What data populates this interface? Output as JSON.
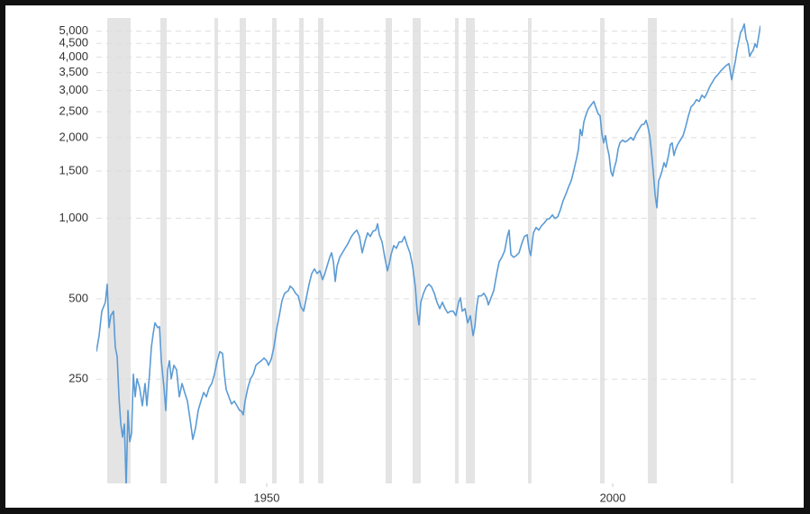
{
  "chart_data": {
    "type": "line",
    "log_y": true,
    "grid": true,
    "color": "#5b9bd5",
    "recession_color": "#e4e4e4",
    "xlim": [
      1925.39,
      2021.35
    ],
    "ylim": [
      102,
      5600
    ],
    "xticks": [
      1950,
      2000
    ],
    "yticks": [
      250,
      500,
      {
        "value": 1000,
        "label": "1,000"
      },
      {
        "value": 1500,
        "label": "1,500"
      },
      {
        "value": 2000,
        "label": "2,000"
      },
      {
        "value": 2500,
        "label": "2,500"
      },
      {
        "value": 3000,
        "label": "3,000"
      },
      {
        "value": 3500,
        "label": "3,500"
      },
      {
        "value": 4000,
        "label": "4,000"
      },
      {
        "value": 4500,
        "label": "4,500"
      },
      {
        "value": 5000,
        "label": "5,000"
      }
    ],
    "recessions": [
      [
        1926.95,
        1930.34
      ],
      [
        1934.64,
        1935.55
      ],
      [
        1942.45,
        1942.97
      ],
      [
        1946.09,
        1947.0
      ],
      [
        1950.78,
        1951.43
      ],
      [
        1954.69,
        1955.34
      ],
      [
        1957.42,
        1958.2
      ],
      [
        1967.19,
        1968.1
      ],
      [
        1971.09,
        1972.27
      ],
      [
        1977.21,
        1977.73
      ],
      [
        1978.78,
        1980.08
      ],
      [
        1987.76,
        1988.28
      ],
      [
        1998.18,
        1998.83
      ],
      [
        2005.08,
        2006.38
      ],
      [
        2017.06,
        2017.45
      ]
    ],
    "x": [
      1925.39,
      1925.78,
      1926.17,
      1926.69,
      1926.95,
      1927.21,
      1927.47,
      1927.86,
      1928.12,
      1928.39,
      1928.65,
      1928.91,
      1929.17,
      1929.43,
      1929.69,
      1929.95,
      1930.21,
      1930.47,
      1930.73,
      1930.99,
      1931.25,
      1931.64,
      1932.03,
      1932.42,
      1932.68,
      1933.07,
      1933.33,
      1933.59,
      1933.85,
      1934.24,
      1934.51,
      1934.77,
      1935.16,
      1935.42,
      1935.68,
      1935.94,
      1936.2,
      1936.59,
      1936.98,
      1937.37,
      1937.76,
      1938.15,
      1938.54,
      1938.93,
      1939.32,
      1939.71,
      1940.1,
      1940.49,
      1940.89,
      1941.28,
      1941.67,
      1942.06,
      1942.45,
      1942.84,
      1943.23,
      1943.62,
      1943.88,
      1944.14,
      1944.53,
      1944.92,
      1945.31,
      1945.7,
      1946.09,
      1946.35,
      1946.61,
      1946.87,
      1947.27,
      1947.66,
      1948.05,
      1948.44,
      1948.83,
      1949.22,
      1949.61,
      1950.0,
      1950.26,
      1950.65,
      1951.04,
      1951.43,
      1951.82,
      1952.21,
      1952.6,
      1953.13,
      1953.39,
      1953.78,
      1954.17,
      1954.56,
      1954.95,
      1955.34,
      1955.73,
      1956.12,
      1956.51,
      1956.9,
      1957.29,
      1957.68,
      1958.07,
      1958.33,
      1958.72,
      1959.11,
      1959.38,
      1959.64,
      1959.9,
      1960.16,
      1960.55,
      1960.94,
      1961.33,
      1961.72,
      1962.24,
      1962.63,
      1963.02,
      1963.41,
      1963.8,
      1964.19,
      1964.58,
      1964.97,
      1965.36,
      1965.76,
      1966.02,
      1966.28,
      1966.67,
      1967.06,
      1967.45,
      1967.71,
      1967.97,
      1968.36,
      1968.75,
      1969.14,
      1969.53,
      1969.92,
      1970.31,
      1970.7,
      1971.09,
      1971.48,
      1971.74,
      1972.01,
      1972.27,
      1972.66,
      1973.05,
      1973.44,
      1973.83,
      1974.22,
      1974.61,
      1975.0,
      1975.39,
      1975.78,
      1976.17,
      1976.56,
      1976.95,
      1977.34,
      1977.73,
      1977.99,
      1978.26,
      1978.65,
      1979.04,
      1979.43,
      1979.82,
      1980.08,
      1980.34,
      1980.6,
      1980.99,
      1981.38,
      1981.77,
      1982.03,
      1982.42,
      1982.81,
      1983.2,
      1983.59,
      1983.98,
      1984.38,
      1984.77,
      1985.03,
      1985.29,
      1985.68,
      1986.07,
      1986.46,
      1986.85,
      1987.24,
      1987.63,
      1987.89,
      1988.15,
      1988.54,
      1988.93,
      1989.32,
      1989.71,
      1990.1,
      1990.49,
      1990.89,
      1991.28,
      1991.67,
      1992.06,
      1992.45,
      1992.84,
      1993.23,
      1993.62,
      1994.01,
      1994.4,
      1994.79,
      1995.05,
      1995.31,
      1995.57,
      1995.83,
      1996.09,
      1996.48,
      1996.88,
      1997.27,
      1997.53,
      1997.92,
      1998.18,
      1998.44,
      1998.7,
      1998.96,
      1999.22,
      1999.48,
      1999.74,
      2000.0,
      2000.26,
      2000.52,
      2000.78,
      2001.04,
      2001.43,
      2001.82,
      2002.21,
      2002.6,
      2002.99,
      2003.39,
      2003.78,
      2004.17,
      2004.56,
      2004.82,
      2005.08,
      2005.34,
      2005.6,
      2005.86,
      2006.12,
      2006.38,
      2006.64,
      2006.9,
      2007.16,
      2007.42,
      2007.68,
      2008.07,
      2008.33,
      2008.59,
      2008.85,
      2009.11,
      2009.38,
      2009.77,
      2010.16,
      2010.55,
      2010.94,
      2011.33,
      2011.72,
      2012.11,
      2012.5,
      2012.89,
      2013.28,
      2013.67,
      2014.06,
      2014.45,
      2014.84,
      2015.23,
      2015.63,
      2016.02,
      2016.41,
      2016.8,
      2017.19,
      2017.45,
      2017.71,
      2017.97,
      2018.23,
      2018.49,
      2018.75,
      2019.01,
      2019.27,
      2019.53,
      2019.79,
      2020.05,
      2020.31,
      2020.57,
      2020.83,
      2021.09,
      2021.35
    ],
    "values": [
      317,
      364,
      449,
      485,
      566,
      390,
      432,
      449,
      329,
      304,
      215,
      170,
      152,
      170,
      99,
      191,
      146,
      157,
      261,
      215,
      251,
      232,
      199,
      241,
      199,
      261,
      329,
      369,
      406,
      390,
      393,
      293,
      232,
      191,
      271,
      293,
      251,
      282,
      271,
      215,
      241,
      223,
      207,
      177,
      149,
      164,
      191,
      207,
      223,
      215,
      232,
      241,
      261,
      293,
      317,
      312,
      261,
      229,
      215,
      202,
      207,
      199,
      191,
      190,
      184,
      207,
      232,
      251,
      261,
      282,
      288,
      293,
      300,
      293,
      282,
      297,
      329,
      384,
      432,
      492,
      524,
      536,
      557,
      545,
      524,
      512,
      466,
      449,
      504,
      566,
      621,
      646,
      621,
      636,
      589,
      612,
      661,
      714,
      742,
      687,
      580,
      661,
      714,
      742,
      772,
      802,
      854,
      881,
      902,
      854,
      742,
      815,
      881,
      854,
      894,
      902,
      952,
      867,
      815,
      714,
      636,
      676,
      731,
      790,
      772,
      815,
      815,
      854,
      790,
      742,
      661,
      553,
      449,
      399,
      485,
      524,
      553,
      566,
      553,
      524,
      485,
      459,
      485,
      459,
      442,
      449,
      449,
      432,
      485,
      504,
      449,
      459,
      406,
      432,
      364,
      393,
      466,
      512,
      512,
      524,
      504,
      474,
      504,
      536,
      612,
      687,
      714,
      754,
      854,
      902,
      731,
      714,
      725,
      742,
      802,
      854,
      867,
      772,
      725,
      881,
      923,
      902,
      937,
      959,
      989,
      997,
      1028,
      997,
      1013,
      1077,
      1164,
      1229,
      1308,
      1381,
      1515,
      1677,
      1811,
      2148,
      2034,
      2286,
      2413,
      2566,
      2648,
      2731,
      2607,
      2450,
      2413,
      2066,
      1912,
      2034,
      1839,
      1716,
      1492,
      1436,
      1551,
      1638,
      1811,
      1912,
      1957,
      1927,
      1957,
      2003,
      1957,
      2066,
      2148,
      2232,
      2250,
      2322,
      2198,
      2034,
      1770,
      1492,
      1229,
      1094,
      1381,
      1436,
      1515,
      1612,
      1551,
      1716,
      1882,
      1912,
      1716,
      1811,
      1882,
      1957,
      2034,
      2198,
      2413,
      2607,
      2669,
      2774,
      2731,
      2884,
      2818,
      2951,
      3117,
      3238,
      3368,
      3447,
      3555,
      3639,
      3724,
      3782,
      3291,
      3555,
      3840,
      4249,
      4591,
      4961,
      5077,
      5320,
      4700,
      4486,
      4024,
      4152,
      4249,
      4486,
      4348,
      4773,
      5236
    ]
  }
}
